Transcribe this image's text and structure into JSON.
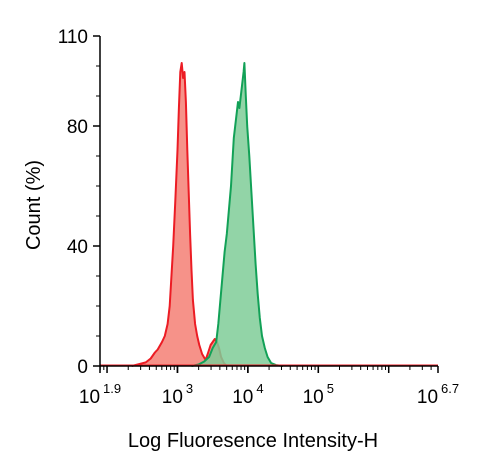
{
  "chart_data": {
    "type": "area",
    "title": "",
    "xlabel": "Log Fluoresence Intensity-H",
    "ylabel": "Count  (%)",
    "x_scale": "log10",
    "xlim": [
      1.9,
      6.7
    ],
    "ylim": [
      0,
      110
    ],
    "x_ticks": [
      {
        "base": "10",
        "exp": "1.9",
        "value": 1.9
      },
      {
        "base": "10",
        "exp": "3",
        "value": 3
      },
      {
        "base": "10",
        "exp": "4",
        "value": 4
      },
      {
        "base": "10",
        "exp": "5",
        "value": 5
      },
      {
        "base": "10",
        "exp": "6.7",
        "value": 6.7
      }
    ],
    "y_ticks": [
      "0",
      "40",
      "80",
      "110"
    ],
    "grid": false,
    "legend": "none",
    "series": [
      {
        "color": "#ec1c24",
        "fill": "#f47f74",
        "points": [
          [
            2.35,
            0
          ],
          [
            2.45,
            0.6
          ],
          [
            2.55,
            1.2
          ],
          [
            2.62,
            2.5
          ],
          [
            2.68,
            4.5
          ],
          [
            2.72,
            5.5
          ],
          [
            2.78,
            8
          ],
          [
            2.82,
            10
          ],
          [
            2.86,
            14
          ],
          [
            2.89,
            20
          ],
          [
            2.91,
            28
          ],
          [
            2.94,
            40
          ],
          [
            2.97,
            55
          ],
          [
            3.0,
            72
          ],
          [
            3.02,
            86
          ],
          [
            3.04,
            98
          ],
          [
            3.06,
            101
          ],
          [
            3.08,
            96
          ],
          [
            3.1,
            98
          ],
          [
            3.12,
            88
          ],
          [
            3.14,
            72
          ],
          [
            3.16,
            58
          ],
          [
            3.18,
            44
          ],
          [
            3.2,
            32
          ],
          [
            3.22,
            22
          ],
          [
            3.25,
            14
          ],
          [
            3.28,
            10
          ],
          [
            3.31,
            7
          ],
          [
            3.35,
            4
          ],
          [
            3.4,
            2
          ],
          [
            3.43,
            4
          ],
          [
            3.47,
            7
          ],
          [
            3.5,
            8
          ],
          [
            3.53,
            9
          ],
          [
            3.56,
            8
          ],
          [
            3.59,
            6
          ],
          [
            3.62,
            3
          ],
          [
            3.66,
            1
          ],
          [
            3.7,
            0
          ]
        ]
      },
      {
        "color": "#12a157",
        "fill": "#7fcc98",
        "points": [
          [
            3.2,
            0
          ],
          [
            3.3,
            0.5
          ],
          [
            3.38,
            1.5
          ],
          [
            3.45,
            3
          ],
          [
            3.5,
            6
          ],
          [
            3.55,
            8
          ],
          [
            3.58,
            14
          ],
          [
            3.61,
            22
          ],
          [
            3.64,
            30
          ],
          [
            3.67,
            38
          ],
          [
            3.7,
            44
          ],
          [
            3.73,
            52
          ],
          [
            3.76,
            60
          ],
          [
            3.78,
            68
          ],
          [
            3.8,
            76
          ],
          [
            3.83,
            82
          ],
          [
            3.86,
            88
          ],
          [
            3.88,
            86
          ],
          [
            3.9,
            90
          ],
          [
            3.92,
            94
          ],
          [
            3.94,
            98
          ],
          [
            3.95,
            101
          ],
          [
            3.97,
            90
          ],
          [
            3.99,
            80
          ],
          [
            4.02,
            70
          ],
          [
            4.05,
            58
          ],
          [
            4.08,
            46
          ],
          [
            4.11,
            34
          ],
          [
            4.14,
            24
          ],
          [
            4.17,
            16
          ],
          [
            4.2,
            10
          ],
          [
            4.24,
            6
          ],
          [
            4.28,
            3
          ],
          [
            4.33,
            1
          ],
          [
            4.4,
            0.3
          ],
          [
            4.5,
            0
          ]
        ]
      }
    ]
  }
}
